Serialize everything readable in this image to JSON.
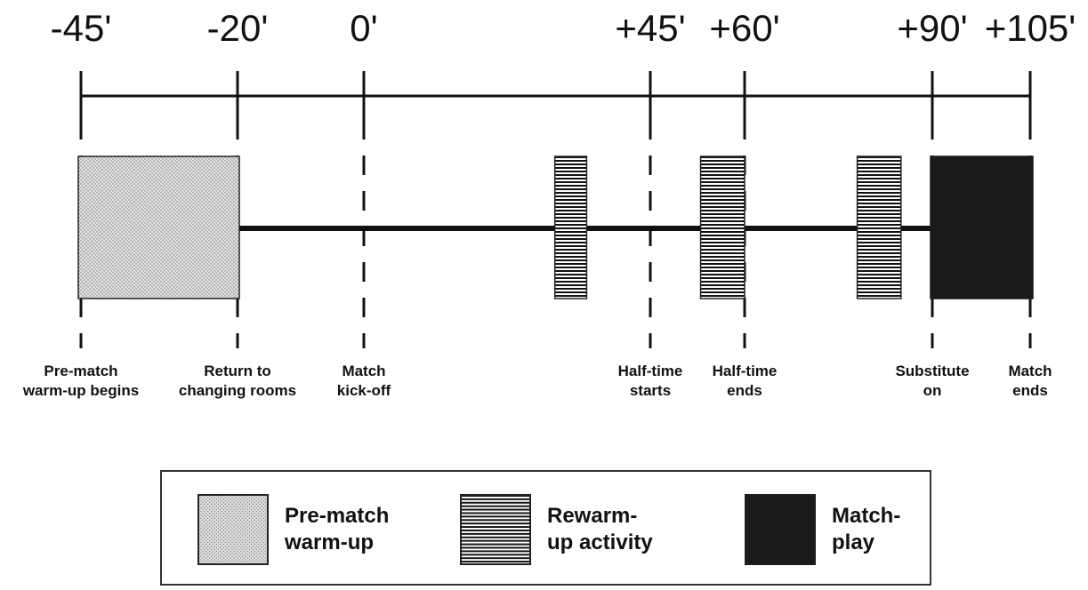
{
  "timeline": {
    "ticks": [
      {
        "minute": -45,
        "label": "-45'"
      },
      {
        "minute": -20,
        "label": "-20'"
      },
      {
        "minute": 0,
        "label": "0'"
      },
      {
        "minute": 45,
        "label": "+45'"
      },
      {
        "minute": 60,
        "label": "+60'"
      },
      {
        "minute": 90,
        "label": "+90'"
      },
      {
        "minute": 105,
        "label": "+105'"
      }
    ],
    "events": [
      {
        "minute": -45,
        "lines": [
          "Pre-match",
          "warm-up begins"
        ]
      },
      {
        "minute": -20,
        "lines": [
          "Return to",
          "changing rooms"
        ]
      },
      {
        "minute": 0,
        "lines": [
          "Match",
          "kick-off"
        ]
      },
      {
        "minute": 45,
        "lines": [
          "Half-time",
          "starts"
        ]
      },
      {
        "minute": 60,
        "lines": [
          "Half-time",
          "ends"
        ]
      },
      {
        "minute": 90,
        "lines": [
          "Substitute",
          "on"
        ]
      },
      {
        "minute": 105,
        "lines": [
          "Match",
          "ends"
        ]
      }
    ],
    "blocks": [
      {
        "type": "warmup",
        "start": -45,
        "end": -20
      },
      {
        "type": "rewarm",
        "start": 30,
        "end": 35
      },
      {
        "type": "rewarm",
        "start": 53,
        "end": 60
      },
      {
        "type": "rewarm",
        "start": 78,
        "end": 85
      },
      {
        "type": "match",
        "start": 90,
        "end": 105
      }
    ]
  },
  "legend": {
    "items": [
      {
        "type": "warmup",
        "lines": [
          "Pre-match",
          "warm-up"
        ]
      },
      {
        "type": "rewarm",
        "lines": [
          "Rewarm-",
          "up activity"
        ]
      },
      {
        "type": "match",
        "lines": [
          "Match-",
          "play"
        ]
      }
    ]
  },
  "colors": {
    "line": "#111111",
    "match": "#1a1a1a",
    "stipple_bg": "#e4e4e4",
    "stipple_dot": "#6a6a6a",
    "stripe": "#111111"
  }
}
